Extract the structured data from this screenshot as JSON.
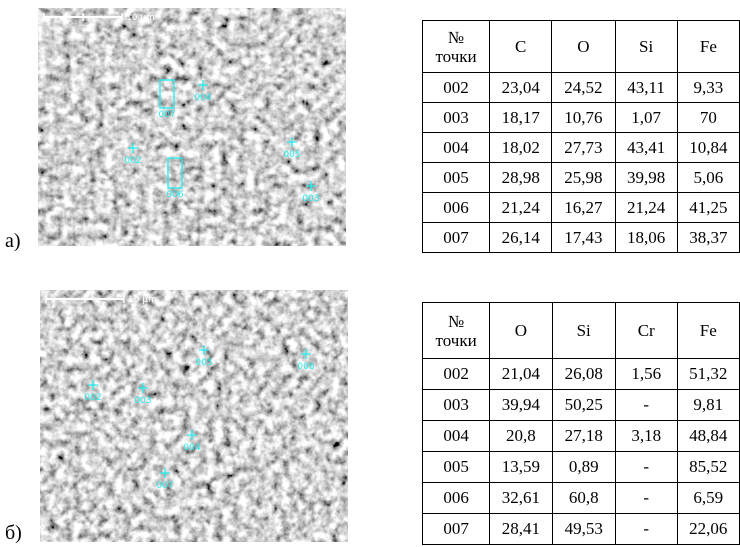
{
  "panels": [
    {
      "label": "а)",
      "image": {
        "scale_label": "10 µm",
        "points": [
          "004",
          "007",
          "002",
          "006",
          "005",
          "003"
        ]
      },
      "table": {
        "header_point": [
          "№",
          "точки"
        ],
        "columns": [
          "C",
          "O",
          "Si",
          "Fe"
        ],
        "rows": [
          [
            "002",
            "23,04",
            "24,52",
            "43,11",
            "9,33"
          ],
          [
            "003",
            "18,17",
            "10,76",
            "1,07",
            "70"
          ],
          [
            "004",
            "18,02",
            "27,73",
            "43,41",
            "10,84"
          ],
          [
            "005",
            "28,98",
            "25,98",
            "39,98",
            "5,06"
          ],
          [
            "006",
            "21,24",
            "16,27",
            "21,24",
            "41,25"
          ],
          [
            "007",
            "26,14",
            "17,43",
            "18,06",
            "38,37"
          ]
        ]
      }
    },
    {
      "label": "б)",
      "image": {
        "scale_label": "10 µm",
        "points": [
          "005",
          "006",
          "002",
          "003",
          "004",
          "007"
        ]
      },
      "table": {
        "header_point": [
          "№",
          "точки"
        ],
        "columns": [
          "O",
          "Si",
          "Cr",
          "Fe"
        ],
        "rows": [
          [
            "002",
            "21,04",
            "26,08",
            "1,56",
            "51,32"
          ],
          [
            "003",
            "39,94",
            "50,25",
            "-",
            "9,81"
          ],
          [
            "004",
            "20,8",
            "27,18",
            "3,18",
            "48,84"
          ],
          [
            "005",
            "13,59",
            "0,89",
            "-",
            "85,52"
          ],
          [
            "006",
            "32,61",
            "60,8",
            "-",
            "6,59"
          ],
          [
            "007",
            "28,41",
            "49,53",
            "-",
            "22,06"
          ]
        ]
      }
    }
  ]
}
